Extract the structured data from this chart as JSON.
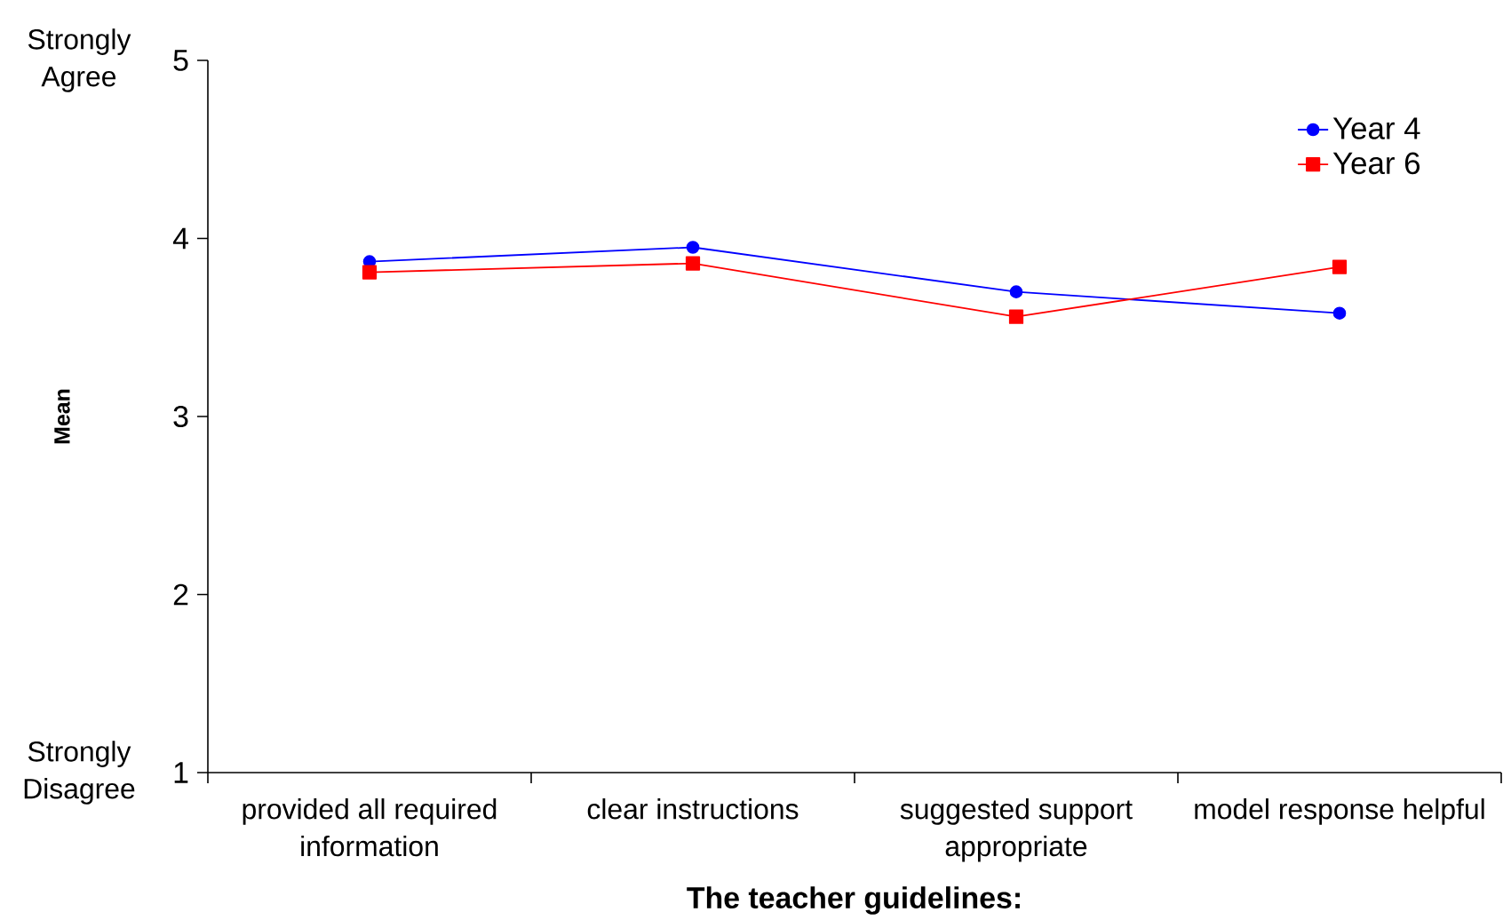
{
  "chart_data": {
    "type": "line",
    "xlabel": "The teacher guidelines:",
    "ylabel": "Mean",
    "categories": [
      "provided all required information",
      "clear instructions",
      "suggested support appropriate",
      "model response helpful"
    ],
    "series": [
      {
        "name": "Year 4",
        "color": "#0000ff",
        "marker": "circle",
        "values": [
          3.87,
          3.95,
          3.7,
          3.58
        ]
      },
      {
        "name": "Year 6",
        "color": "#ff0000",
        "marker": "square",
        "values": [
          3.81,
          3.86,
          3.56,
          3.84
        ]
      }
    ],
    "ylim": [
      1,
      5
    ],
    "yticks": [
      1,
      2,
      3,
      4,
      5
    ],
    "legend": "top right",
    "annotations": [
      "Strongly Agree",
      "Strongly Disagree"
    ]
  }
}
